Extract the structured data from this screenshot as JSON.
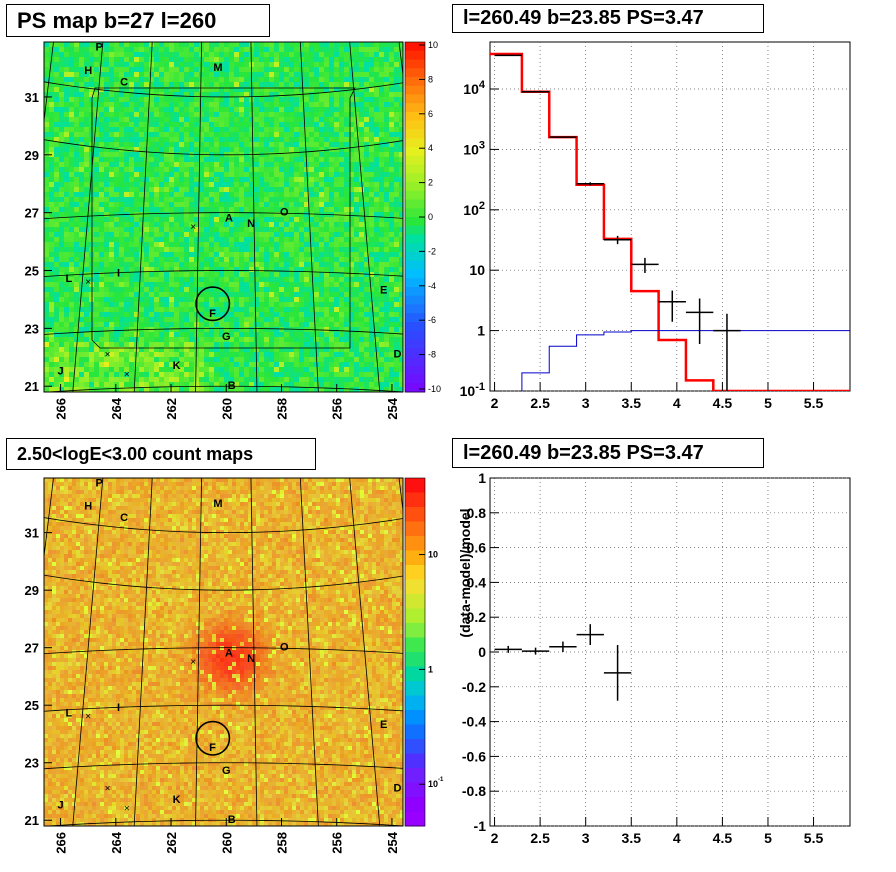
{
  "titles": {
    "map_top": "PS map b=27 l=260",
    "spectrum": "l=260.49 b=23.85 PS=3.47",
    "map_bottom": "2.50<logE<3.00 count maps",
    "residual": "l=260.49 b=23.85 PS=3.47"
  },
  "colors": {
    "data": "#000000",
    "model": "#ff0000",
    "signal": "#0000cc",
    "map_bg": "#22e644",
    "count_bg": "#e8c030"
  },
  "chart_data": [
    {
      "type": "heatmap",
      "id": "ps_map",
      "x_ticks": [
        "266",
        "264",
        "262",
        "260",
        "258",
        "256",
        "254"
      ],
      "y_ticks": [
        "31",
        "29",
        "27",
        "25",
        "23",
        "21"
      ],
      "xlim": [
        266.6,
        253.6
      ],
      "ylim": [
        20.8,
        32.9
      ],
      "colorbar_ticks": [
        "10",
        "8",
        "6",
        "4",
        "2",
        "0",
        "-2",
        "-4",
        "-6",
        "-8",
        "-10"
      ],
      "colorbar_range": [
        -10,
        10
      ],
      "markers": [
        {
          "label": "P",
          "l": 264.6,
          "b": 32.6
        },
        {
          "label": "H",
          "l": 265.0,
          "b": 31.8
        },
        {
          "label": "M",
          "l": 260.3,
          "b": 31.9
        },
        {
          "label": "C",
          "l": 263.7,
          "b": 31.4
        },
        {
          "label": "O",
          "l": 257.9,
          "b": 26.9
        },
        {
          "label": "A",
          "l": 259.9,
          "b": 26.7
        },
        {
          "label": "N",
          "l": 259.1,
          "b": 26.5
        },
        {
          "label": "L",
          "l": 265.7,
          "b": 24.6
        },
        {
          "label": "I",
          "l": 263.9,
          "b": 24.8
        },
        {
          "label": "E",
          "l": 254.3,
          "b": 24.2
        },
        {
          "label": "F",
          "l": 260.5,
          "b": 23.4
        },
        {
          "label": "G",
          "l": 260.0,
          "b": 22.6
        },
        {
          "label": "D",
          "l": 253.8,
          "b": 22.0
        },
        {
          "label": "K",
          "l": 261.8,
          "b": 21.6
        },
        {
          "label": "J",
          "l": 266.0,
          "b": 21.4
        },
        {
          "label": "B",
          "l": 259.8,
          "b": 20.9
        }
      ],
      "crosses": [
        {
          "l": 261.2,
          "b": 26.5
        },
        {
          "l": 265.0,
          "b": 24.6
        },
        {
          "l": 264.3,
          "b": 22.1
        },
        {
          "l": 263.6,
          "b": 21.4
        }
      ],
      "circle": {
        "l": 260.49,
        "b": 23.85,
        "r": 0.55
      }
    },
    {
      "type": "line",
      "id": "spectrum",
      "x_ticks": [
        "2",
        "2.5",
        "3",
        "3.5",
        "4",
        "4.5",
        "5",
        "5.5"
      ],
      "xlim": [
        1.95,
        5.9
      ],
      "y_ticks": [
        "10^4",
        "10^3",
        "10^2",
        "10",
        "1",
        "10^-1"
      ],
      "ylim": [
        0.1,
        60000
      ],
      "log_y": true,
      "grid": true,
      "series": [
        {
          "kind": "data",
          "x": [
            2.15,
            2.45,
            2.75,
            3.05,
            3.35,
            3.65,
            3.95,
            4.25,
            4.55
          ],
          "y": [
            36000,
            9000,
            1600,
            270,
            32,
            12.5,
            3.0,
            2.0,
            1.0
          ],
          "yerr_lo": [
            200,
            90,
            40,
            16,
            5,
            3.5,
            1.6,
            1.4,
            0.9
          ],
          "yerr_hi": [
            200,
            90,
            40,
            16,
            5,
            3.5,
            1.6,
            1.4,
            0.9
          ]
        },
        {
          "kind": "model",
          "edges": [
            1.95,
            2.3,
            2.6,
            2.9,
            3.2,
            3.5,
            3.8,
            4.1,
            4.4,
            5.9
          ],
          "values": [
            38000,
            9000,
            1600,
            260,
            33,
            4.5,
            0.7,
            0.15,
            0.1
          ]
        },
        {
          "kind": "signal",
          "edges": [
            2.3,
            2.6,
            2.9,
            3.2,
            3.5,
            3.8,
            4.1,
            4.4,
            4.7,
            5.9
          ],
          "values": [
            0.2,
            0.55,
            0.85,
            0.95,
            1.0,
            1.0,
            1.0,
            1.0,
            1.0
          ]
        }
      ]
    },
    {
      "type": "heatmap",
      "id": "count_map",
      "x_ticks": [
        "266",
        "264",
        "262",
        "260",
        "258",
        "256",
        "254"
      ],
      "y_ticks": [
        "31",
        "29",
        "27",
        "25",
        "23",
        "21"
      ],
      "xlim": [
        266.6,
        253.6
      ],
      "ylim": [
        20.8,
        32.9
      ],
      "colorbar_ticks": [
        "10",
        "1",
        "10^-1"
      ],
      "log_z": true,
      "hotspot": {
        "l": 259.9,
        "b": 26.7
      }
    },
    {
      "type": "scatter",
      "id": "residual",
      "x_ticks": [
        "2",
        "2.5",
        "3",
        "3.5",
        "4",
        "4.5",
        "5",
        "5.5"
      ],
      "xlim": [
        1.95,
        5.9
      ],
      "y_ticks": [
        "1",
        "0.8",
        "0.6",
        "0.4",
        "0.2",
        "0",
        "-0.2",
        "-0.4",
        "-0.6",
        "-0.8",
        "-1"
      ],
      "ylim": [
        -1,
        1
      ],
      "ylabel": "(data-model)/model",
      "grid": true,
      "series": [
        {
          "kind": "data",
          "x": [
            2.15,
            2.45,
            2.75,
            3.05,
            3.35
          ],
          "y": [
            0.015,
            0.005,
            0.03,
            0.1,
            -0.12
          ],
          "yerr": [
            0.02,
            0.02,
            0.03,
            0.06,
            0.16
          ]
        }
      ]
    }
  ]
}
